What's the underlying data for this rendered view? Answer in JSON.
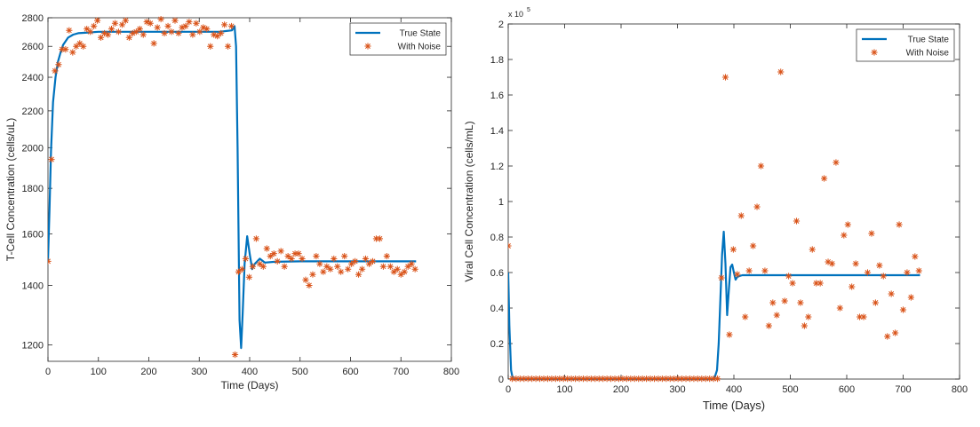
{
  "colors": {
    "true_state": "#0072BD",
    "with_noise": "#D95319",
    "axis": "#262626",
    "background": "#ffffff"
  },
  "chart_data": [
    {
      "type": "line",
      "xlabel": "Time (Days)",
      "ylabel": "T-Cell Concentration (cells/uL)",
      "xlim": [
        0,
        800
      ],
      "ylim": [
        1150,
        2800
      ],
      "y_scale": "log",
      "xticks": [
        "0",
        "100",
        "200",
        "300",
        "400",
        "500",
        "600",
        "700",
        "800"
      ],
      "yticks": [
        "1200",
        "1400",
        "1600",
        "1800",
        "2000",
        "2200",
        "2400",
        "2600",
        "2800"
      ],
      "grid": false,
      "legend_position": "top-right",
      "series": [
        {
          "name": "True State",
          "style": "line",
          "x": [
            0,
            3,
            6,
            10,
            15,
            20,
            25,
            30,
            40,
            50,
            60,
            80,
            100,
            150,
            200,
            250,
            300,
            340,
            365,
            370,
            373,
            376,
            380,
            383,
            386,
            390,
            395,
            400,
            405,
            410,
            420,
            430,
            450,
            500,
            600,
            700,
            730
          ],
          "y": [
            1490,
            1700,
            1980,
            2250,
            2400,
            2500,
            2560,
            2610,
            2660,
            2680,
            2690,
            2695,
            2700,
            2700,
            2700,
            2700,
            2700,
            2700,
            2710,
            2740,
            2600,
            2000,
            1280,
            1190,
            1300,
            1480,
            1590,
            1520,
            1460,
            1480,
            1500,
            1485,
            1488,
            1490,
            1490,
            1490,
            1490
          ]
        },
        {
          "name": "With Noise",
          "style": "markers",
          "x": [
            0,
            7,
            14,
            21,
            28,
            35,
            42,
            49,
            56,
            63,
            70,
            77,
            84,
            91,
            98,
            105,
            112,
            119,
            126,
            133,
            140,
            147,
            154,
            161,
            168,
            175,
            182,
            189,
            196,
            203,
            210,
            217,
            224,
            231,
            238,
            245,
            252,
            259,
            266,
            273,
            280,
            287,
            294,
            301,
            308,
            315,
            322,
            329,
            336,
            343,
            350,
            357,
            364,
            371,
            378,
            385,
            392,
            399,
            406,
            413,
            420,
            427,
            434,
            441,
            448,
            455,
            462,
            469,
            476,
            483,
            490,
            497,
            504,
            511,
            518,
            525,
            532,
            539,
            546,
            553,
            560,
            567,
            574,
            581,
            588,
            595,
            602,
            609,
            616,
            623,
            630,
            637,
            644,
            651,
            658,
            665,
            672,
            679,
            686,
            693,
            700,
            707,
            714,
            721,
            728
          ],
          "y": [
            1490,
            1940,
            2440,
            2480,
            2580,
            2580,
            2710,
            2560,
            2600,
            2620,
            2600,
            2720,
            2700,
            2740,
            2780,
            2660,
            2690,
            2680,
            2720,
            2760,
            2700,
            2750,
            2780,
            2660,
            2690,
            2700,
            2720,
            2680,
            2770,
            2760,
            2620,
            2730,
            2790,
            2690,
            2740,
            2700,
            2780,
            2690,
            2730,
            2740,
            2770,
            2680,
            2760,
            2700,
            2730,
            2720,
            2600,
            2680,
            2670,
            2690,
            2750,
            2600,
            2740,
            1170,
            1450,
            1460,
            1500,
            1430,
            1470,
            1580,
            1480,
            1470,
            1540,
            1510,
            1520,
            1490,
            1530,
            1470,
            1510,
            1500,
            1520,
            1520,
            1500,
            1420,
            1400,
            1440,
            1510,
            1480,
            1450,
            1470,
            1460,
            1500,
            1470,
            1450,
            1510,
            1460,
            1480,
            1490,
            1440,
            1460,
            1500,
            1480,
            1490,
            1580,
            1580,
            1470,
            1510,
            1470,
            1450,
            1460,
            1440,
            1450,
            1470,
            1480,
            1460
          ]
        }
      ]
    },
    {
      "type": "line",
      "xlabel": "Time (Days)",
      "ylabel": "Viral Cell Concentration (cells/mL)",
      "y_exponent_label": "x 10",
      "y_exponent_power": "5",
      "xlim": [
        0,
        800
      ],
      "ylim": [
        0,
        2
      ],
      "xticks": [
        "0",
        "100",
        "200",
        "300",
        "400",
        "500",
        "600",
        "700",
        "800"
      ],
      "yticks": [
        "0",
        "0.2",
        "0.4",
        "0.6",
        "0.8",
        "1",
        "1.2",
        "1.4",
        "1.6",
        "1.8",
        "2"
      ],
      "grid": false,
      "legend_position": "top-right",
      "series": [
        {
          "name": "True State",
          "style": "line",
          "x": [
            0,
            2,
            5,
            8,
            12,
            20,
            100,
            200,
            300,
            360,
            365,
            370,
            373,
            376,
            379,
            382,
            385,
            388,
            391,
            394,
            397,
            400,
            403,
            406,
            410,
            415,
            420,
            430,
            450,
            500,
            600,
            700,
            730
          ],
          "y": [
            0.6,
            0.3,
            0.05,
            0.003,
            0,
            0,
            0,
            0,
            0,
            0,
            0,
            0.05,
            0.2,
            0.45,
            0.7,
            0.83,
            0.65,
            0.36,
            0.5,
            0.63,
            0.645,
            0.6,
            0.56,
            0.575,
            0.58,
            0.585,
            0.585,
            0.585,
            0.585,
            0.585,
            0.585,
            0.585,
            0.585
          ]
        },
        {
          "name": "With Noise",
          "style": "markers",
          "x": [
            0,
            7,
            14,
            21,
            28,
            35,
            42,
            49,
            56,
            63,
            70,
            77,
            84,
            91,
            98,
            105,
            112,
            119,
            126,
            133,
            140,
            147,
            154,
            161,
            168,
            175,
            182,
            189,
            196,
            203,
            210,
            217,
            224,
            231,
            238,
            245,
            252,
            259,
            266,
            273,
            280,
            287,
            294,
            301,
            308,
            315,
            322,
            329,
            336,
            343,
            350,
            357,
            364,
            371,
            378,
            385,
            392,
            399,
            406,
            413,
            420,
            427,
            434,
            441,
            448,
            455,
            462,
            469,
            476,
            483,
            490,
            497,
            504,
            511,
            518,
            525,
            532,
            539,
            546,
            553,
            560,
            567,
            574,
            581,
            588,
            595,
            602,
            609,
            616,
            623,
            630,
            637,
            644,
            651,
            658,
            665,
            672,
            679,
            686,
            693,
            700,
            707,
            714,
            721,
            728
          ],
          "y": [
            0.75,
            0.002,
            0.002,
            0.002,
            0.002,
            0.002,
            0.002,
            0.002,
            0.002,
            0.002,
            0.002,
            0.002,
            0.002,
            0.002,
            0.002,
            0.002,
            0.002,
            0.002,
            0.002,
            0.002,
            0.002,
            0.002,
            0.002,
            0.002,
            0.002,
            0.002,
            0.002,
            0.002,
            0.002,
            0.002,
            0.002,
            0.002,
            0.002,
            0.002,
            0.002,
            0.002,
            0.002,
            0.002,
            0.002,
            0.002,
            0.002,
            0.002,
            0.002,
            0.002,
            0.002,
            0.002,
            0.002,
            0.002,
            0.002,
            0.002,
            0.002,
            0.002,
            0.002,
            0.002,
            0.57,
            1.7,
            0.25,
            0.73,
            0.59,
            0.92,
            0.35,
            0.61,
            0.75,
            0.97,
            1.2,
            0.61,
            0.3,
            0.43,
            0.36,
            1.73,
            0.44,
            0.58,
            0.54,
            0.89,
            0.43,
            0.3,
            0.35,
            0.73,
            0.54,
            0.54,
            1.13,
            0.66,
            0.65,
            1.22,
            0.4,
            0.81,
            0.87,
            0.52,
            0.65,
            0.35,
            0.35,
            0.6,
            0.82,
            0.43,
            0.64,
            0.58,
            0.24,
            0.48,
            0.26,
            0.87,
            0.39,
            0.6,
            0.46,
            0.69,
            0.61
          ]
        }
      ]
    }
  ]
}
